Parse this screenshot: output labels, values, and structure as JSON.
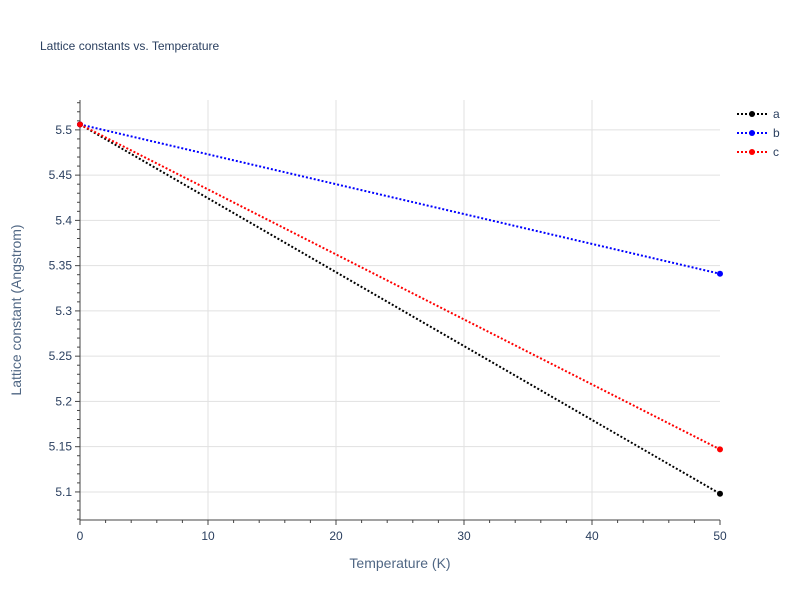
{
  "chart_data": {
    "type": "line",
    "title": "Lattice constants vs. Temperature",
    "xlabel": "Temperature (K)",
    "ylabel": "Lattice constant (Angstrom)",
    "xlim": [
      0,
      50
    ],
    "ylim": [
      5.069,
      5.533
    ],
    "xticks": [
      0,
      10,
      20,
      30,
      40,
      50
    ],
    "yticks": [
      5.1,
      5.15,
      5.2,
      5.25,
      5.3,
      5.35,
      5.4,
      5.45,
      5.5
    ],
    "grid": true,
    "legend_position": "top-right",
    "series": [
      {
        "name": "a",
        "color": "#000000",
        "x": [
          0,
          50
        ],
        "y": [
          5.506,
          5.098
        ]
      },
      {
        "name": "b",
        "color": "#0000ff",
        "x": [
          0,
          50
        ],
        "y": [
          5.506,
          5.341
        ]
      },
      {
        "name": "c",
        "color": "#ff0000",
        "x": [
          0,
          50
        ],
        "y": [
          5.506,
          5.147
        ]
      }
    ]
  }
}
